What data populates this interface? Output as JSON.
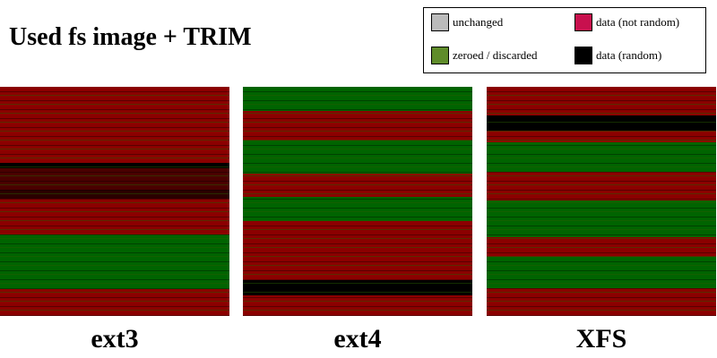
{
  "title": "Used fs image + TRIM",
  "legend": [
    "unchanged",
    "data (not random)",
    "zeroed / discarded",
    "data (random)"
  ],
  "panels": [
    "ext3",
    "ext4",
    "XFS"
  ]
}
